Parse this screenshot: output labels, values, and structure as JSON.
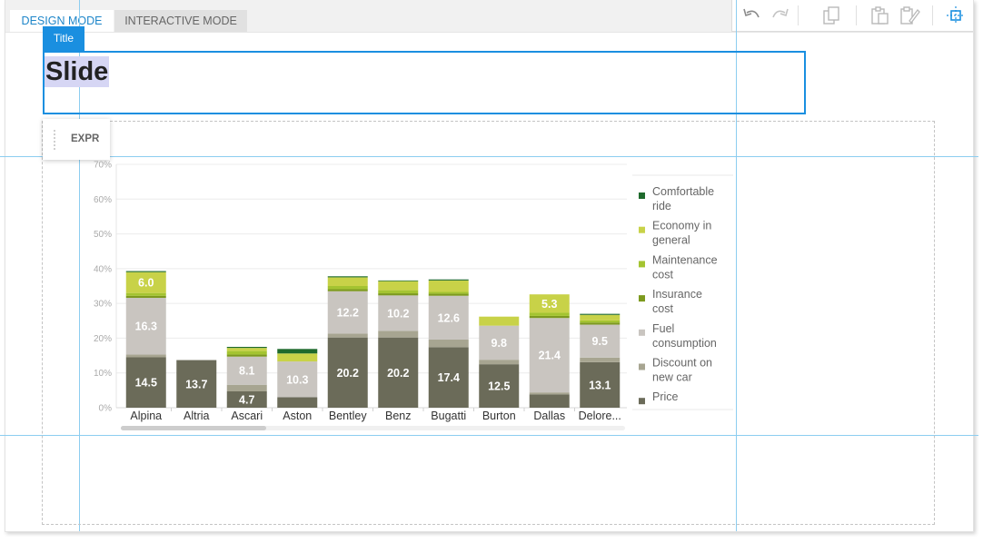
{
  "tabs": [
    {
      "label": "DESIGN MODE",
      "active": true
    },
    {
      "label": "INTERACTIVE MODE",
      "active": false
    }
  ],
  "toolbar": {
    "icons": [
      "undo-icon",
      "redo-icon",
      "copy-icon",
      "paste-icon",
      "paste-format-icon",
      "snap-guides-icon"
    ]
  },
  "title_element": {
    "tag": "Title",
    "text": "Slide"
  },
  "chart_element": {
    "tag": "EXPR"
  },
  "chart_data": {
    "type": "bar",
    "stacked": true,
    "categories": [
      "Alpina",
      "Altria",
      "Ascari",
      "Aston",
      "Bentley",
      "Benz",
      "Bugatti",
      "Burton",
      "Dallas",
      "Delore..."
    ],
    "ylim": [
      0,
      70
    ],
    "yticks": [
      "0%",
      "10%",
      "20%",
      "30%",
      "40%",
      "50%",
      "60%",
      "70%"
    ],
    "grid": true,
    "legend_position": "right",
    "series": [
      {
        "name": "Price",
        "color": "#6b6b59",
        "values": [
          14.5,
          13.7,
          4.7,
          3.0,
          20.2,
          20.2,
          17.4,
          12.5,
          3.8,
          13.1
        ]
      },
      {
        "name": "Discount on new car",
        "color": "#a7a591",
        "values": [
          0.8,
          0,
          1.9,
          0,
          1.1,
          1.9,
          2.2,
          1.3,
          0.6,
          1.3
        ]
      },
      {
        "name": "Fuel consumption",
        "color": "#c9c5c0",
        "values": [
          16.3,
          0,
          8.1,
          10.3,
          12.2,
          10.2,
          12.6,
          9.8,
          21.4,
          9.5
        ]
      },
      {
        "name": "Insurance cost",
        "color": "#7d9a1e",
        "values": [
          0.6,
          0,
          0.6,
          0,
          0.6,
          0.6,
          0.6,
          0,
          0.6,
          0.6
        ]
      },
      {
        "name": "Maintenance cost",
        "color": "#a4c431",
        "values": [
          0.8,
          0,
          1.0,
          0,
          0.9,
          0.9,
          0.5,
          0,
          0.9,
          0.6
        ]
      },
      {
        "name": "Economy in general",
        "color": "#c8d248",
        "values": [
          6.0,
          0,
          0.9,
          2.3,
          2.5,
          2.6,
          3.3,
          2.6,
          5.3,
          1.6
        ]
      },
      {
        "name": "Comfortable ride",
        "color": "#1f6a2d",
        "values": [
          0.3,
          0,
          0.3,
          1.3,
          0.3,
          0.2,
          0.3,
          0,
          0,
          0.3
        ]
      }
    ],
    "legend_order": [
      "Comfortable ride",
      "Economy in general",
      "Maintenance cost",
      "Insurance cost",
      "Fuel consumption",
      "Discount on new car",
      "Price"
    ],
    "label_min": 4.5
  }
}
